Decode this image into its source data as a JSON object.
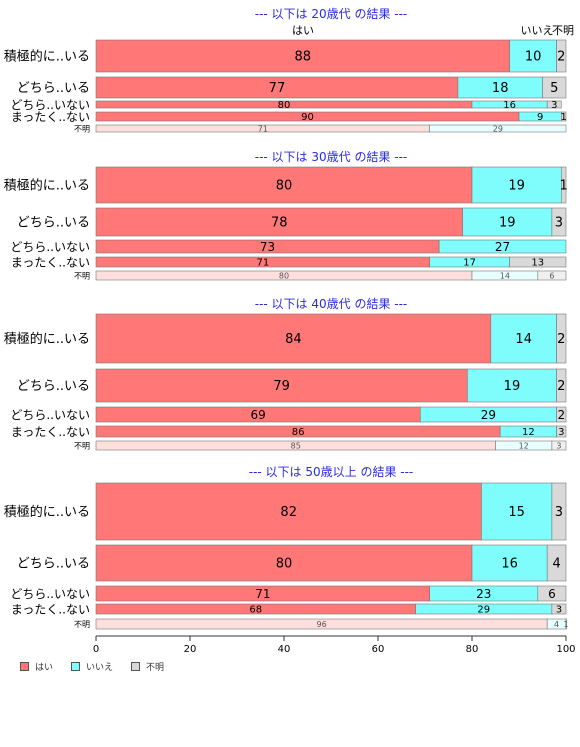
{
  "chart_data": {
    "type": "bar",
    "orientation": "horizontal-stacked-percent",
    "xlim": [
      0,
      100
    ],
    "xticks": [
      "0",
      "20",
      "40",
      "60",
      "80",
      "100"
    ],
    "colors": {
      "はい": "#ff7777",
      "いいえ": "#7ffcfc",
      "不明": "#d9d9d9"
    },
    "series_names": [
      "はい",
      "いいえ",
      "不明"
    ],
    "top_headers": {
      "yes": "はい",
      "no": "いいえ",
      "unknown": "不明"
    },
    "panels": [
      {
        "title": "--- 以下は 20歳代 の結果 ---",
        "rows": [
          {
            "label": "積極的に..いる",
            "values": [
              88,
              10,
              2
            ]
          },
          {
            "label": "どちら..いる",
            "values": [
              77,
              18,
              5
            ]
          },
          {
            "label": "どちら..いない",
            "values": [
              80,
              16,
              3
            ]
          },
          {
            "label": "まったく..ない",
            "values": [
              90,
              9,
              1
            ]
          },
          {
            "label": "不明",
            "values": [
              71,
              29,
              0
            ]
          }
        ]
      },
      {
        "title": "--- 以下は 30歳代 の結果 ---",
        "rows": [
          {
            "label": "積極的に..いる",
            "values": [
              80,
              19,
              1
            ]
          },
          {
            "label": "どちら..いる",
            "values": [
              78,
              19,
              3
            ]
          },
          {
            "label": "どちら..いない",
            "values": [
              73,
              27,
              0
            ]
          },
          {
            "label": "まったく..ない",
            "values": [
              71,
              17,
              13
            ]
          },
          {
            "label": "不明",
            "values": [
              80,
              14,
              6
            ]
          }
        ]
      },
      {
        "title": "--- 以下は 40歳代 の結果 ---",
        "rows": [
          {
            "label": "積極的に..いる",
            "values": [
              84,
              14,
              2
            ]
          },
          {
            "label": "どちら..いる",
            "values": [
              79,
              19,
              2
            ]
          },
          {
            "label": "どちら..いない",
            "values": [
              69,
              29,
              2
            ]
          },
          {
            "label": "まったく..ない",
            "values": [
              86,
              12,
              3
            ]
          },
          {
            "label": "不明",
            "values": [
              85,
              12,
              3
            ]
          }
        ]
      },
      {
        "title": "--- 以下は 50歳以上 の結果 ---",
        "rows": [
          {
            "label": "積極的に..いる",
            "values": [
              82,
              15,
              3
            ]
          },
          {
            "label": "どちら..いる",
            "values": [
              80,
              16,
              4
            ]
          },
          {
            "label": "どちら..いない",
            "values": [
              71,
              23,
              6
            ]
          },
          {
            "label": "まったく..ない",
            "values": [
              68,
              29,
              3
            ]
          },
          {
            "label": "不明",
            "values": [
              96,
              4,
              1
            ]
          }
        ]
      }
    ]
  }
}
